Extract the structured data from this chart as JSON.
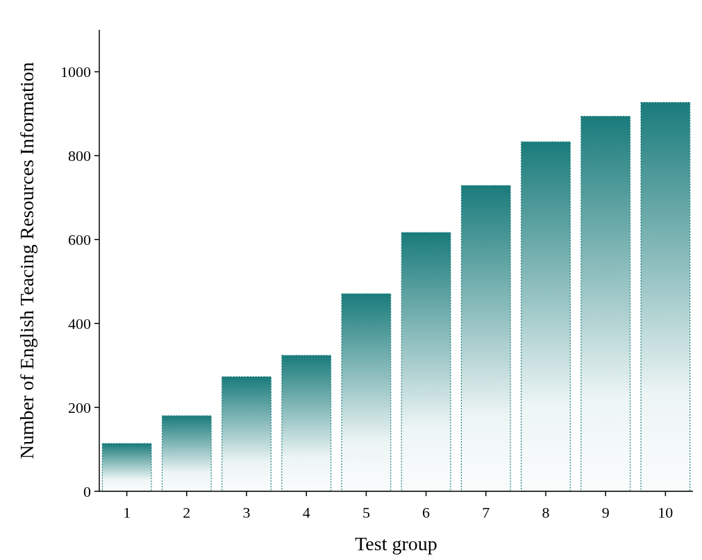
{
  "chart_data": {
    "type": "bar",
    "xlabel": "Test group",
    "ylabel": "Number of English Teacing Resources Information",
    "categories": [
      "1",
      "2",
      "3",
      "4",
      "5",
      "6",
      "7",
      "8",
      "9",
      "10"
    ],
    "values": [
      114,
      180,
      273,
      324,
      471,
      617,
      729,
      833,
      894,
      927
    ],
    "color": "#1a7b7b",
    "ylim": [
      0,
      1100
    ],
    "yticks": [
      0,
      200,
      400,
      600,
      800,
      1000
    ],
    "grid": false
  }
}
